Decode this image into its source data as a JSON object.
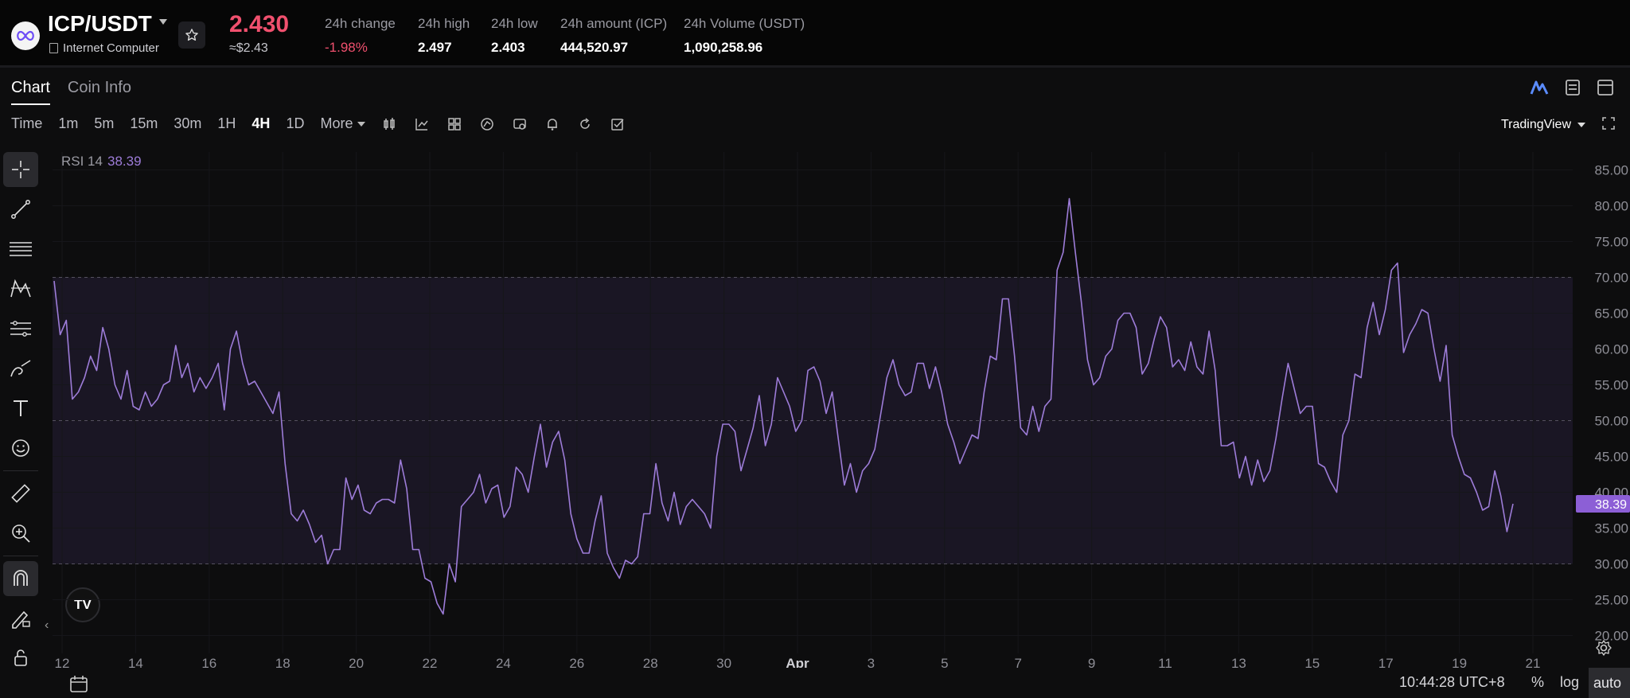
{
  "header": {
    "pair": "ICP/USDT",
    "coin_name": "Internet Computer",
    "price": "2.430",
    "price_usd": "≈$2.43",
    "stats": [
      {
        "label": "24h change",
        "value": "-1.98%",
        "negative": true
      },
      {
        "label": "24h high",
        "value": "2.497"
      },
      {
        "label": "24h low",
        "value": "2.403"
      },
      {
        "label": "24h amount (ICP)",
        "value": "444,520.97"
      },
      {
        "label": "24h Volume (USDT)",
        "value": "1,090,258.96"
      }
    ]
  },
  "tabs": [
    {
      "label": "Chart",
      "active": true
    },
    {
      "label": "Coin Info",
      "active": false
    }
  ],
  "toolbar": {
    "intervals": [
      "Time",
      "1m",
      "5m",
      "15m",
      "30m",
      "1H",
      "4H",
      "1D",
      "More"
    ],
    "selected": "4H",
    "chart_style": "TradingView"
  },
  "indicator": {
    "name": "RSI 14",
    "value": "38.39"
  },
  "footer": {
    "time": "10:44:28 UTC+8",
    "percent": "%",
    "log": "log",
    "auto": "auto"
  },
  "colors": {
    "rsi_line": "#9d7cd8",
    "band": "#1a1624",
    "negative": "#f0506e",
    "label_bg": "#8c5fd6"
  },
  "icons": [
    "chevron-down-icon",
    "star-icon",
    "doc-icon",
    "candle-icon",
    "line-chart-icon",
    "grid-icon",
    "indicator-icon",
    "compare-icon",
    "alert-icon",
    "refresh-icon",
    "check-icon",
    "fullscreen-icon",
    "crosshair-icon",
    "trendline-icon",
    "fib-icon",
    "pattern-icon",
    "ruler-lines-icon",
    "brush-icon",
    "text-icon",
    "emoji-icon",
    "ruler-icon",
    "zoom-in-icon",
    "magnet-icon",
    "pencil-lock-icon",
    "lock-icon",
    "calendar-icon",
    "gear-icon"
  ],
  "chart_data": {
    "type": "line",
    "title": "RSI 14",
    "ylim": [
      17.5,
      87.5
    ],
    "y_ticks": [
      "85.00",
      "80.00",
      "75.00",
      "70.00",
      "65.00",
      "60.00",
      "55.00",
      "50.00",
      "45.00",
      "40.00",
      "35.00",
      "30.00",
      "25.00",
      "20.00"
    ],
    "x_ticks": [
      "12",
      "14",
      "16",
      "18",
      "20",
      "22",
      "24",
      "26",
      "28",
      "30",
      "Apr",
      "3",
      "5",
      "7",
      "9",
      "11",
      "13",
      "15",
      "17",
      "19",
      "21"
    ],
    "bands": {
      "upper": 70,
      "middle": 50,
      "lower": 30
    },
    "series": [
      {
        "values": [
          69.5,
          62,
          64,
          53,
          54,
          56,
          59,
          57,
          63,
          60,
          55,
          53,
          57,
          52,
          51.5,
          54,
          52,
          53,
          55,
          55.5,
          60.5,
          56,
          58,
          54,
          56,
          54.5,
          56,
          58,
          51.5,
          60,
          62.5,
          58,
          55,
          55.5,
          54,
          52.5,
          51,
          54,
          44,
          37,
          36,
          37.5,
          35.5,
          33,
          34,
          30,
          32,
          32,
          42,
          39,
          41,
          37.5,
          37,
          38.5,
          39,
          39,
          38.5,
          44.5,
          40.5,
          32,
          32,
          28,
          27.5,
          24.5,
          23,
          30,
          27.5,
          38,
          39,
          40,
          42.5,
          38.5,
          40.5,
          41,
          36.5,
          38,
          43.5,
          42.5,
          40,
          45,
          49.5,
          43.5,
          47,
          48.5,
          44.5,
          37,
          33.5,
          31.5,
          31.5,
          36,
          39.5,
          31.5,
          29.5,
          28,
          30.5,
          30,
          31,
          37,
          37,
          44,
          38.5,
          36,
          40,
          35.5,
          38,
          39,
          38,
          37,
          35,
          45,
          49.5,
          49.5,
          48.5,
          43,
          46,
          49,
          53.5,
          46.5,
          49.5,
          56,
          54,
          52,
          48.5,
          50,
          57,
          57.5,
          55.5,
          51,
          54,
          47.5,
          41,
          44,
          40,
          43,
          44,
          46,
          51,
          56,
          58.5,
          55,
          53.5,
          54,
          58,
          58,
          54.5,
          57.5,
          54,
          49.5,
          47,
          44,
          46,
          48,
          47.5,
          54,
          59,
          58.5,
          67,
          67,
          59,
          49,
          48,
          52,
          48.5,
          52,
          53,
          71,
          73.5,
          81,
          73.5,
          66.5,
          58.5,
          55,
          56,
          59,
          60,
          64,
          65,
          65,
          63,
          56.5,
          58,
          61.5,
          64.5,
          63,
          57.5,
          58.5,
          57,
          61,
          57.5,
          56.5,
          62.5,
          57,
          46.5,
          46.5,
          47,
          42,
          45,
          41,
          44.5,
          41.5,
          43,
          47.5,
          53,
          58,
          54.5,
          51,
          52,
          52,
          44,
          43.5,
          41.5,
          40,
          48,
          50,
          56.5,
          56,
          63,
          66.5,
          62,
          65.5,
          71,
          72,
          59.5,
          62,
          63.5,
          65.5,
          65,
          60,
          55.5,
          60.5,
          48,
          45,
          42.5,
          42,
          40,
          37.5,
          38,
          43,
          39.5,
          34.5,
          38.39
        ]
      }
    ]
  }
}
